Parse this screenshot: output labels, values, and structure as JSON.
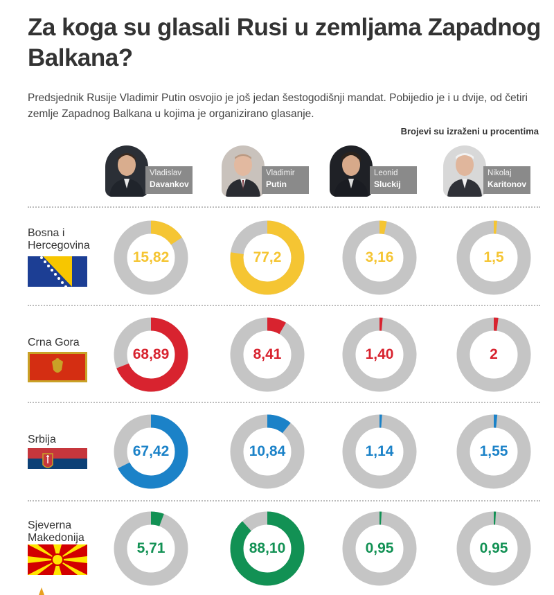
{
  "title": "Za koga su glasali Rusi u zemljama Zapadnog Balkana?",
  "intro": "Predsjednik Rusije Vladimir Putin osvojio je još jedan šestogodišnji mandat. Pobijedio je i u dvije, od četiri zemlje Zapadnog Balkana u kojima je organizirano glasanje.",
  "note": "Brojevi su izraženi u procentima",
  "candidates": [
    {
      "first": "Vladislav",
      "last": "Davankov"
    },
    {
      "first": "Vladimir",
      "last": "Putin"
    },
    {
      "first": "Leonid",
      "last": "Sluckij"
    },
    {
      "first": "Nikolaj",
      "last": "Karitonov"
    }
  ],
  "countries": [
    {
      "name": "Bosna i Hercegovina",
      "color": "#f5c533"
    },
    {
      "name": "Crna Gora",
      "color": "#d8232f"
    },
    {
      "name": "Srbija",
      "color": "#1b82c8"
    },
    {
      "name": "Sjeverna Makedonija",
      "color": "#129154"
    }
  ],
  "colors": {
    "track": "#c5c5c5",
    "nametag": "#8a8a8a"
  },
  "chart_data": {
    "type": "donut",
    "categories": [
      "Davankov",
      "Putin",
      "Sluckij",
      "Karitonov"
    ],
    "series": [
      {
        "name": "Bosna i Hercegovina",
        "values": [
          15.82,
          77.2,
          3.16,
          1.5
        ],
        "labels": [
          "15,82",
          "77,2",
          "3,16",
          "1,5"
        ]
      },
      {
        "name": "Crna Gora",
        "values": [
          68.89,
          8.41,
          1.4,
          2
        ],
        "labels": [
          "68,89",
          "8,41",
          "1,40",
          "2"
        ]
      },
      {
        "name": "Srbija",
        "values": [
          67.42,
          10.84,
          1.14,
          1.55
        ],
        "labels": [
          "67,42",
          "10,84",
          "1,14",
          "1,55"
        ]
      },
      {
        "name": "Sjeverna Makedonija",
        "values": [
          5.71,
          88.1,
          0.95,
          0.95
        ],
        "labels": [
          "5,71",
          "88,10",
          "0,95",
          "0,95"
        ]
      }
    ]
  }
}
